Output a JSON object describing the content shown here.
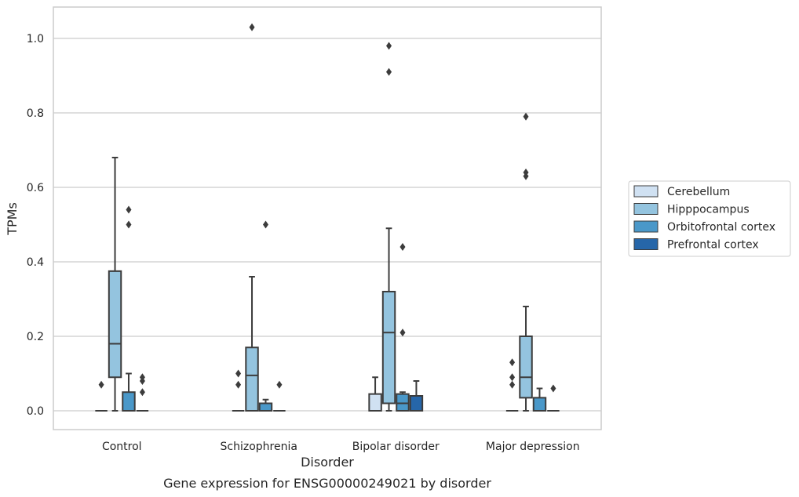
{
  "chart_data": {
    "type": "box",
    "title": "",
    "caption": "Gene expression for ENSG00000249021 by disorder",
    "xlabel": "Disorder",
    "ylabel": "TPMs",
    "ylim": [
      -0.05,
      1.08
    ],
    "yticks": [
      0.0,
      0.2,
      0.4,
      0.6,
      0.8,
      1.0
    ],
    "ytick_labels": [
      "0.0",
      "0.2",
      "0.4",
      "0.6",
      "0.8",
      "1.0"
    ],
    "grid": "horizontal",
    "legend_position": "right",
    "categories": [
      "Control",
      "Schizophrenia",
      "Bipolar disorder",
      "Major depression"
    ],
    "hue_order": [
      "Cerebellum",
      "Hipppocampus",
      "Orbitofrontal cortex",
      "Prefrontal cortex"
    ],
    "colors": {
      "Cerebellum": "#d0e1f2",
      "Hipppocampus": "#94c4df",
      "Orbitofrontal cortex": "#4a98c9",
      "Prefrontal cortex": "#2666a9"
    },
    "series": [
      {
        "name": "Cerebellum",
        "boxes": [
          {
            "category": "Control",
            "whislo": 0.0,
            "q1": 0.0,
            "med": 0.0,
            "q3": 0.0,
            "whishi": 0.0,
            "fliers": [
              0.07
            ]
          },
          {
            "category": "Schizophrenia",
            "whislo": 0.0,
            "q1": 0.0,
            "med": 0.0,
            "q3": 0.0,
            "whishi": 0.0,
            "fliers": [
              0.07,
              0.1
            ]
          },
          {
            "category": "Bipolar disorder",
            "whislo": 0.0,
            "q1": 0.0,
            "med": 0.0,
            "q3": 0.045,
            "whishi": 0.09,
            "fliers": []
          },
          {
            "category": "Major depression",
            "whislo": 0.0,
            "q1": 0.0,
            "med": 0.0,
            "q3": 0.0,
            "whishi": 0.0,
            "fliers": [
              0.07,
              0.09,
              0.13
            ]
          }
        ]
      },
      {
        "name": "Hipppocampus",
        "boxes": [
          {
            "category": "Control",
            "whislo": 0.0,
            "q1": 0.09,
            "med": 0.18,
            "q3": 0.375,
            "whishi": 0.68,
            "fliers": []
          },
          {
            "category": "Schizophrenia",
            "whislo": 0.0,
            "q1": 0.0,
            "med": 0.095,
            "q3": 0.17,
            "whishi": 0.36,
            "fliers": [
              1.03
            ]
          },
          {
            "category": "Bipolar disorder",
            "whislo": 0.0,
            "q1": 0.02,
            "med": 0.21,
            "q3": 0.32,
            "whishi": 0.49,
            "fliers": [
              0.91,
              0.98
            ]
          },
          {
            "category": "Major depression",
            "whislo": 0.0,
            "q1": 0.035,
            "med": 0.09,
            "q3": 0.2,
            "whishi": 0.28,
            "fliers": [
              0.63,
              0.64,
              0.79
            ]
          }
        ]
      },
      {
        "name": "Orbitofrontal cortex",
        "boxes": [
          {
            "category": "Control",
            "whislo": 0.0,
            "q1": 0.0,
            "med": 0.0,
            "q3": 0.05,
            "whishi": 0.1,
            "fliers": [
              0.5,
              0.54
            ]
          },
          {
            "category": "Schizophrenia",
            "whislo": 0.0,
            "q1": 0.0,
            "med": 0.0,
            "q3": 0.02,
            "whishi": 0.03,
            "fliers": [
              0.5
            ]
          },
          {
            "category": "Bipolar disorder",
            "whislo": 0.0,
            "q1": 0.0,
            "med": 0.02,
            "q3": 0.045,
            "whishi": 0.05,
            "fliers": [
              0.21,
              0.44
            ]
          },
          {
            "category": "Major depression",
            "whislo": 0.0,
            "q1": 0.0,
            "med": 0.0,
            "q3": 0.035,
            "whishi": 0.06,
            "fliers": []
          }
        ]
      },
      {
        "name": "Prefrontal cortex",
        "boxes": [
          {
            "category": "Control",
            "whislo": 0.0,
            "q1": 0.0,
            "med": 0.0,
            "q3": 0.0,
            "whishi": 0.0,
            "fliers": [
              0.05,
              0.08,
              0.09
            ]
          },
          {
            "category": "Schizophrenia",
            "whislo": 0.0,
            "q1": 0.0,
            "med": 0.0,
            "q3": 0.0,
            "whishi": 0.0,
            "fliers": [
              0.07
            ]
          },
          {
            "category": "Bipolar disorder",
            "whislo": 0.0,
            "q1": 0.0,
            "med": 0.0,
            "q3": 0.04,
            "whishi": 0.08,
            "fliers": []
          },
          {
            "category": "Major depression",
            "whislo": 0.0,
            "q1": 0.0,
            "med": 0.0,
            "q3": 0.0,
            "whishi": 0.0,
            "fliers": [
              0.06
            ]
          }
        ]
      }
    ]
  }
}
